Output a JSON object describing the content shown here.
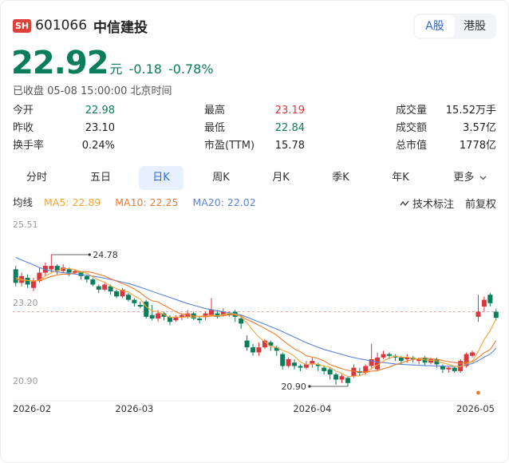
{
  "header": {
    "exchange_badge": "SH",
    "code": "601066",
    "name": "中信建投",
    "markets": [
      "A股",
      "港股"
    ],
    "active_market": "A股"
  },
  "quote": {
    "price": "22.92",
    "unit": "元",
    "change": "-0.18",
    "change_pct": "-0.78%",
    "status": "已收盘 05-08 15:00:00 北京时间"
  },
  "stats": [
    {
      "label": "今开",
      "value": "22.98",
      "color": "#0a7d5a"
    },
    {
      "label": "最高",
      "value": "23.19",
      "color": "#d9363e"
    },
    {
      "label": "成交量",
      "value": "15.52万手",
      "color": "#222222"
    },
    {
      "label": "昨收",
      "value": "23.10",
      "color": "#222222"
    },
    {
      "label": "最低",
      "value": "22.84",
      "color": "#0a7d5a"
    },
    {
      "label": "成交额",
      "value": "3.57亿",
      "color": "#222222"
    },
    {
      "label": "换手率",
      "value": "0.24%",
      "color": "#222222"
    },
    {
      "label": "市盈(TTM)",
      "value": "15.78",
      "color": "#222222"
    },
    {
      "label": "总市值",
      "value": "1778亿",
      "color": "#222222"
    }
  ],
  "tabs": [
    "分时",
    "五日",
    "日K",
    "周K",
    "月K",
    "季K",
    "年K",
    "更多"
  ],
  "active_tab": "日K",
  "indicators": {
    "name": "均线",
    "ma5": "MA5: 22.89",
    "ma10": "MA10: 22.25",
    "ma20": "MA20: 22.02",
    "tech_label": "技术标注",
    "adjust_label": "前复权"
  },
  "colors": {
    "up": "#d9363e",
    "down": "#0a7d5a",
    "ma5": "#f2a53a",
    "ma10": "#ee7b2e",
    "ma20": "#5b84d6",
    "accent": "#2f6bd6"
  },
  "chart_data": {
    "type": "candlestick",
    "y_ticks": [
      "25.51",
      "23.20",
      "20.90"
    ],
    "ylim": [
      20.9,
      25.51
    ],
    "x_ticks": [
      "2026-02",
      "2026-03",
      "2026-04",
      "2026-05"
    ],
    "x_tick_index": [
      0,
      20,
      50,
      79
    ],
    "annotations": {
      "high": "24.78",
      "low": "20.90"
    },
    "high_index": 6,
    "low_index": 56,
    "reference_price": 23.1,
    "candles": [
      [
        24.35,
        23.95,
        24.45,
        23.85
      ],
      [
        23.95,
        24.15,
        24.25,
        23.85
      ],
      [
        24.1,
        23.9,
        24.2,
        23.8
      ],
      [
        23.8,
        24.0,
        24.1,
        23.7
      ],
      [
        24.0,
        24.25,
        24.4,
        23.95
      ],
      [
        24.25,
        24.45,
        24.55,
        24.15
      ],
      [
        24.35,
        24.45,
        24.78,
        24.25
      ],
      [
        24.45,
        24.3,
        24.5,
        24.2
      ],
      [
        24.3,
        24.4,
        24.5,
        24.25
      ],
      [
        24.35,
        24.25,
        24.4,
        24.15
      ],
      [
        24.25,
        24.3,
        24.35,
        24.2
      ],
      [
        24.25,
        24.15,
        24.3,
        24.05
      ],
      [
        24.15,
        24.05,
        24.2,
        23.95
      ],
      [
        24.05,
        23.9,
        24.1,
        23.85
      ],
      [
        23.85,
        23.75,
        23.9,
        23.65
      ],
      [
        23.75,
        23.9,
        23.95,
        23.7
      ],
      [
        23.85,
        23.7,
        23.9,
        23.6
      ],
      [
        23.7,
        23.55,
        23.75,
        23.5
      ],
      [
        23.55,
        23.75,
        23.8,
        23.5
      ],
      [
        23.6,
        23.45,
        23.65,
        23.4
      ],
      [
        23.45,
        23.35,
        23.5,
        23.25
      ],
      [
        23.3,
        23.25,
        23.4,
        23.2
      ],
      [
        23.4,
        22.95,
        23.45,
        22.9
      ],
      [
        23.0,
        22.9,
        23.3,
        22.85
      ],
      [
        22.9,
        23.05,
        23.15,
        22.8
      ],
      [
        23.05,
        22.95,
        23.1,
        22.85
      ],
      [
        22.95,
        22.8,
        23.0,
        22.7
      ],
      [
        22.85,
        22.95,
        23.0,
        22.8
      ],
      [
        22.95,
        23.0,
        23.05,
        22.85
      ],
      [
        22.95,
        23.05,
        23.15,
        22.9
      ],
      [
        23.05,
        22.9,
        23.1,
        22.85
      ],
      [
        22.9,
        22.85,
        22.95,
        22.75
      ],
      [
        22.95,
        23.05,
        23.1,
        22.85
      ],
      [
        23.0,
        23.15,
        23.5,
        22.95
      ],
      [
        23.05,
        22.95,
        23.15,
        22.9
      ],
      [
        23.0,
        23.1,
        23.2,
        22.95
      ],
      [
        23.05,
        23.0,
        23.1,
        22.95
      ],
      [
        23.1,
        22.95,
        23.15,
        22.8
      ],
      [
        22.9,
        22.75,
        23.0,
        22.6
      ],
      [
        22.25,
        22.05,
        22.4,
        21.95
      ],
      [
        22.05,
        21.9,
        22.15,
        21.8
      ],
      [
        21.9,
        22.05,
        22.2,
        21.8
      ],
      [
        22.05,
        22.25,
        22.3,
        22.0
      ],
      [
        22.2,
        22.1,
        22.25,
        21.95
      ],
      [
        22.05,
        21.95,
        22.1,
        21.8
      ],
      [
        21.85,
        21.5,
        21.9,
        21.4
      ],
      [
        21.5,
        21.7,
        21.75,
        21.45
      ],
      [
        21.6,
        21.5,
        21.7,
        21.4
      ],
      [
        21.5,
        21.45,
        21.55,
        21.35
      ],
      [
        21.45,
        21.55,
        21.65,
        21.4
      ],
      [
        21.55,
        21.65,
        21.75,
        21.45
      ],
      [
        21.55,
        21.5,
        21.6,
        21.35
      ],
      [
        21.45,
        21.35,
        21.5,
        21.25
      ],
      [
        21.4,
        21.25,
        21.45,
        21.1
      ],
      [
        21.25,
        21.1,
        21.3,
        20.95
      ],
      [
        21.1,
        21.2,
        21.25,
        21.0
      ],
      [
        21.15,
        21.0,
        21.2,
        20.9
      ],
      [
        21.2,
        21.45,
        21.55,
        21.15
      ],
      [
        21.35,
        21.3,
        21.45,
        21.2
      ],
      [
        21.3,
        21.5,
        21.55,
        21.25
      ],
      [
        21.5,
        21.7,
        22.15,
        21.4
      ],
      [
        21.4,
        21.75,
        21.9,
        21.35
      ],
      [
        21.75,
        21.85,
        21.95,
        21.7
      ],
      [
        21.85,
        21.8,
        21.9,
        21.7
      ],
      [
        21.8,
        21.75,
        21.85,
        21.65
      ],
      [
        21.75,
        21.65,
        21.8,
        21.55
      ],
      [
        21.7,
        21.75,
        21.85,
        21.6
      ],
      [
        21.75,
        21.7,
        21.8,
        21.6
      ],
      [
        21.65,
        21.7,
        21.75,
        21.55
      ],
      [
        21.75,
        21.6,
        21.8,
        21.5
      ],
      [
        21.6,
        21.7,
        21.75,
        21.55
      ],
      [
        21.7,
        21.55,
        21.75,
        21.45
      ],
      [
        21.5,
        21.4,
        21.55,
        21.3
      ],
      [
        21.4,
        21.45,
        21.5,
        21.3
      ],
      [
        21.45,
        21.35,
        21.5,
        21.3
      ],
      [
        21.35,
        21.65,
        21.7,
        21.3
      ],
      [
        21.5,
        21.85,
        21.9,
        21.45
      ],
      [
        21.8,
        21.9,
        21.95,
        21.75
      ],
      [
        22.95,
        23.1,
        23.6,
        22.8
      ],
      [
        23.25,
        23.45,
        23.55,
        23.1
      ],
      [
        23.6,
        23.35,
        23.65,
        23.25
      ],
      [
        23.1,
        22.92,
        23.19,
        22.84
      ]
    ],
    "ma5": [
      24.1,
      24.05,
      24.02,
      24.0,
      24.03,
      24.15,
      24.25,
      24.31,
      24.37,
      24.37,
      24.34,
      24.28,
      24.23,
      24.13,
      24.03,
      23.97,
      23.86,
      23.78,
      23.72,
      23.68,
      23.56,
      23.47,
      23.25,
      23.12,
      23.1,
      23.02,
      22.93,
      22.94,
      22.93,
      22.95,
      22.94,
      22.97,
      22.97,
      23.0,
      22.98,
      23.02,
      23.05,
      23.03,
      22.95,
      22.77,
      22.55,
      22.35,
      22.22,
      22.07,
      22.05,
      21.96,
      21.9,
      21.79,
      21.62,
      21.54,
      21.57,
      21.55,
      21.5,
      21.46,
      21.35,
      21.28,
      21.19,
      21.2,
      21.21,
      21.29,
      21.43,
      21.53,
      21.64,
      21.74,
      21.79,
      21.76,
      21.76,
      21.73,
      21.7,
      21.68,
      21.67,
      21.65,
      21.59,
      21.55,
      21.49,
      21.48,
      21.56,
      21.64,
      21.93,
      22.28,
      22.54,
      22.89
    ],
    "ma10": [
      24.05,
      24.03,
      24.02,
      24.01,
      24.02,
      24.08,
      24.14,
      24.18,
      24.21,
      24.2,
      24.25,
      24.28,
      24.28,
      24.25,
      24.2,
      24.15,
      24.07,
      24.0,
      23.93,
      23.86,
      23.77,
      23.66,
      23.52,
      23.42,
      23.39,
      23.29,
      23.2,
      23.1,
      23.03,
      23.02,
      22.98,
      22.95,
      22.95,
      22.97,
      22.97,
      22.98,
      23.01,
      23.0,
      22.97,
      22.87,
      22.79,
      22.7,
      22.61,
      22.51,
      22.41,
      22.26,
      22.13,
      22.0,
      21.92,
      21.8,
      21.76,
      21.72,
      21.65,
      21.54,
      21.48,
      21.42,
      21.37,
      21.35,
      21.33,
      21.32,
      21.35,
      21.36,
      21.42,
      21.47,
      21.54,
      21.59,
      21.65,
      21.69,
      21.72,
      21.74,
      21.71,
      21.7,
      21.66,
      21.63,
      21.6,
      21.58,
      21.61,
      21.62,
      21.75,
      21.89,
      21.98,
      22.25
    ],
    "ma20": [
      24.7,
      24.62,
      24.55,
      24.48,
      24.4,
      24.34,
      24.3,
      24.27,
      24.25,
      24.23,
      24.21,
      24.19,
      24.17,
      24.15,
      24.12,
      24.09,
      24.05,
      24.01,
      23.97,
      23.93,
      23.88,
      23.82,
      23.76,
      23.7,
      23.64,
      23.58,
      23.52,
      23.46,
      23.4,
      23.34,
      23.29,
      23.24,
      23.19,
      23.16,
      23.13,
      23.1,
      23.07,
      23.04,
      23.0,
      22.94,
      22.87,
      22.8,
      22.73,
      22.66,
      22.59,
      22.51,
      22.43,
      22.35,
      22.27,
      22.19,
      22.12,
      22.05,
      21.99,
      21.94,
      21.89,
      21.84,
      21.79,
      21.75,
      21.71,
      21.68,
      21.65,
      21.62,
      21.6,
      21.58,
      21.56,
      21.55,
      21.54,
      21.53,
      21.52,
      21.51,
      21.51,
      21.5,
      21.5,
      21.49,
      21.49,
      21.5,
      21.54,
      21.57,
      21.66,
      21.76,
      21.85,
      22.02
    ],
    "marker_index": 78
  }
}
